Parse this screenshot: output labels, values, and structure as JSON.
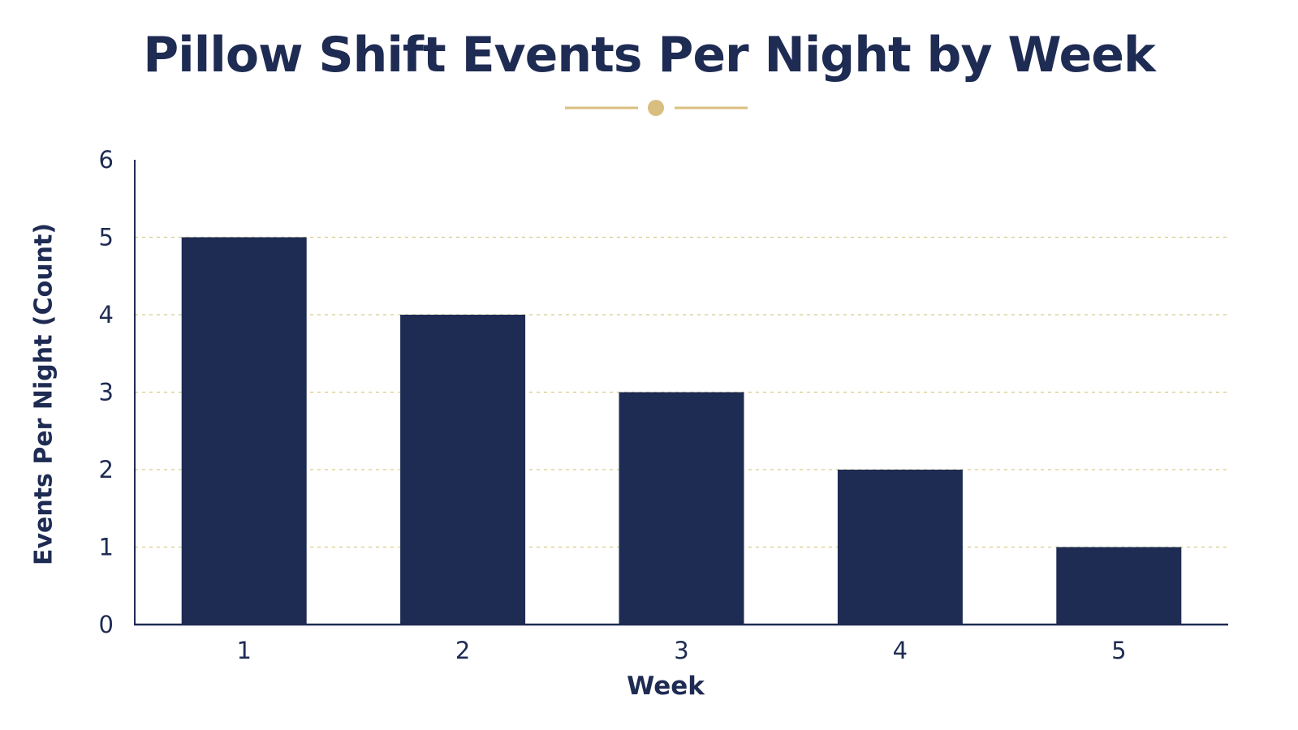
{
  "chart_data": {
    "type": "bar",
    "title": "Pillow Shift Events Per Night by Week",
    "xlabel": "Week",
    "ylabel": "Events Per Night (Count)",
    "categories": [
      "1",
      "2",
      "3",
      "4",
      "5"
    ],
    "values": [
      5,
      4,
      3,
      2,
      1
    ],
    "ylim": [
      0,
      6
    ],
    "yticks": [
      "0",
      "1",
      "2",
      "3",
      "4",
      "5",
      "6"
    ],
    "grid": true,
    "legend": "none",
    "colors": {
      "bar": "#1e2b53",
      "axis": "#1e2b53",
      "grid": "#d8cc8a",
      "ornament": "#d9bf7f",
      "text": "#1e2b53"
    }
  }
}
